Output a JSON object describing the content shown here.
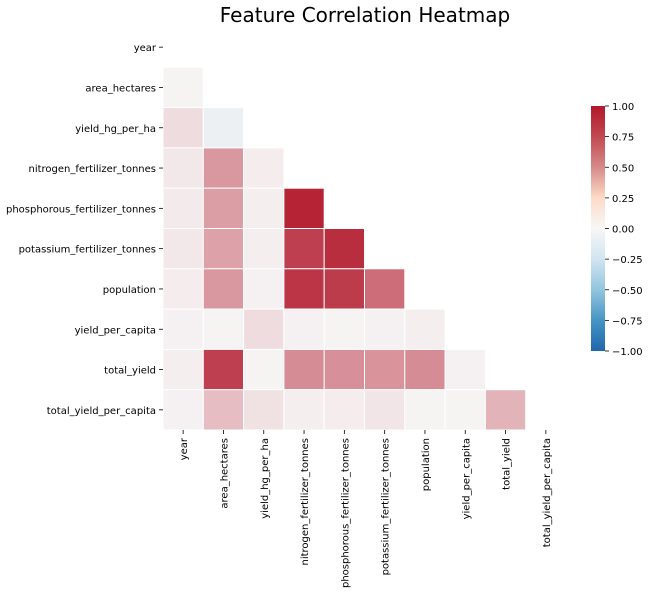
{
  "chart_data": {
    "type": "heatmap",
    "title": "Feature Correlation Heatmap",
    "mask": "upper-triangle-including-diagonal",
    "labels": [
      "year",
      "area_hectares",
      "yield_hg_per_ha",
      "nitrogen_fertilizer_tonnes",
      "phosphorous_fertilizer_tonnes",
      "potassium_fertilizer_tonnes",
      "population",
      "yield_per_capita",
      "total_yield",
      "total_yield_per_capita"
    ],
    "lower_triangle": [
      [],
      [
        0.02
      ],
      [
        0.12,
        -0.05
      ],
      [
        0.07,
        0.43,
        0.05
      ],
      [
        0.06,
        0.4,
        0.04,
        0.95
      ],
      [
        0.07,
        0.38,
        0.04,
        0.82,
        0.9
      ],
      [
        0.05,
        0.43,
        0.03,
        0.87,
        0.84,
        0.62
      ],
      [
        0.03,
        0.02,
        0.12,
        0.03,
        0.02,
        0.03,
        0.04
      ],
      [
        0.04,
        0.82,
        0.02,
        0.48,
        0.46,
        0.45,
        0.48,
        0.03
      ],
      [
        0.03,
        0.26,
        0.1,
        0.04,
        0.05,
        0.08,
        0.02,
        0.02,
        0.3
      ]
    ],
    "colormap": "vlag",
    "vmin": -1.0,
    "vmax": 1.0,
    "colorbar": {
      "ticks": [
        "1.00",
        "0.75",
        "0.50",
        "0.25",
        "0.00",
        "−0.25",
        "−0.50",
        "−0.75",
        "−1.00"
      ],
      "tick_values": [
        1.0,
        0.75,
        0.5,
        0.25,
        0.0,
        -0.25,
        -0.5,
        -0.75,
        -1.0
      ],
      "position": "right"
    },
    "colors": {
      "low": "#2166ac",
      "mid": "#f7f7f7",
      "high": "#b2182b",
      "cell_border": "#ffffff",
      "text": "#000000"
    }
  }
}
